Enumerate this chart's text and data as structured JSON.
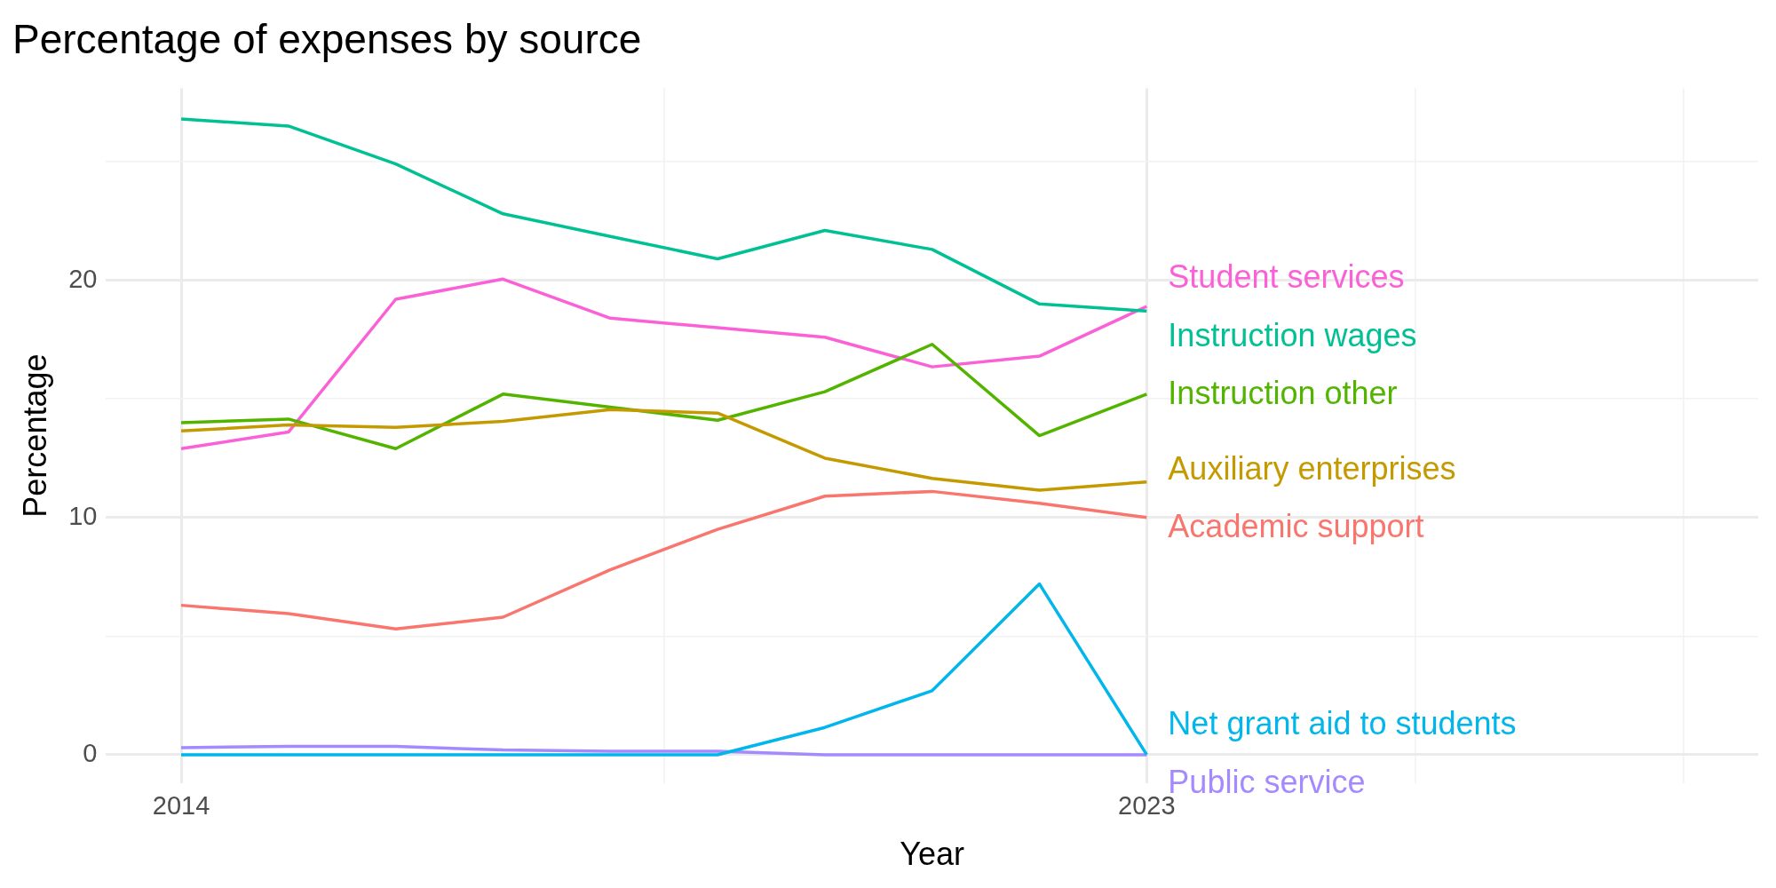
{
  "chart_data": {
    "type": "line",
    "title": "Percentage of expenses by source",
    "xlabel": "Year",
    "ylabel": "Percentage",
    "x": [
      2014,
      2015,
      2016,
      2017,
      2018,
      2019,
      2020,
      2021,
      2022,
      2023
    ],
    "series": [
      {
        "name": "Academic support",
        "color": "#f8766d",
        "values": [
          6.3,
          5.95,
          5.3,
          5.8,
          7.8,
          9.5,
          10.9,
          11.1,
          10.6,
          10.0
        ]
      },
      {
        "name": "Auxiliary enterprises",
        "color": "#c49a00",
        "values": [
          13.65,
          13.9,
          13.8,
          14.05,
          14.55,
          14.4,
          12.5,
          11.65,
          11.15,
          11.5
        ]
      },
      {
        "name": "Instruction other",
        "color": "#53b400",
        "values": [
          14.0,
          14.15,
          12.9,
          15.2,
          14.65,
          14.1,
          15.3,
          17.3,
          13.45,
          15.2
        ]
      },
      {
        "name": "Instruction wages",
        "color": "#00c094",
        "values": [
          26.8,
          26.5,
          24.9,
          22.8,
          21.85,
          20.9,
          22.1,
          21.3,
          19.0,
          18.7
        ]
      },
      {
        "name": "Net grant aid to students",
        "color": "#00b6eb",
        "values": [
          0,
          0,
          0,
          0,
          0,
          0,
          1.15,
          2.7,
          7.2,
          0
        ]
      },
      {
        "name": "Public service",
        "color": "#a58aff",
        "values": [
          0.3,
          0.35,
          0.35,
          0.2,
          0.15,
          0.15,
          0,
          0,
          0,
          0
        ]
      },
      {
        "name": "Student services",
        "color": "#fb61d7",
        "values": [
          12.9,
          13.6,
          19.2,
          20.05,
          18.4,
          18.0,
          17.6,
          16.35,
          16.8,
          18.9
        ]
      }
    ],
    "xlim": [
      2013.3,
      2028.7
    ],
    "xticks": [
      2014,
      {
        "value": 2018.5,
        "label": null
      },
      2023,
      {
        "value": 2025.5,
        "label": null
      },
      {
        "value": 2028,
        "label": null
      }
    ],
    "ylim": [
      -1.2,
      28.1
    ],
    "yticks": [
      0,
      {
        "value": 5,
        "label": null
      },
      10,
      {
        "value": 15,
        "label": null
      },
      20,
      {
        "value": 25,
        "label": null
      }
    ],
    "grid": true,
    "legend": false,
    "marker": "none",
    "line_style": "solid"
  }
}
